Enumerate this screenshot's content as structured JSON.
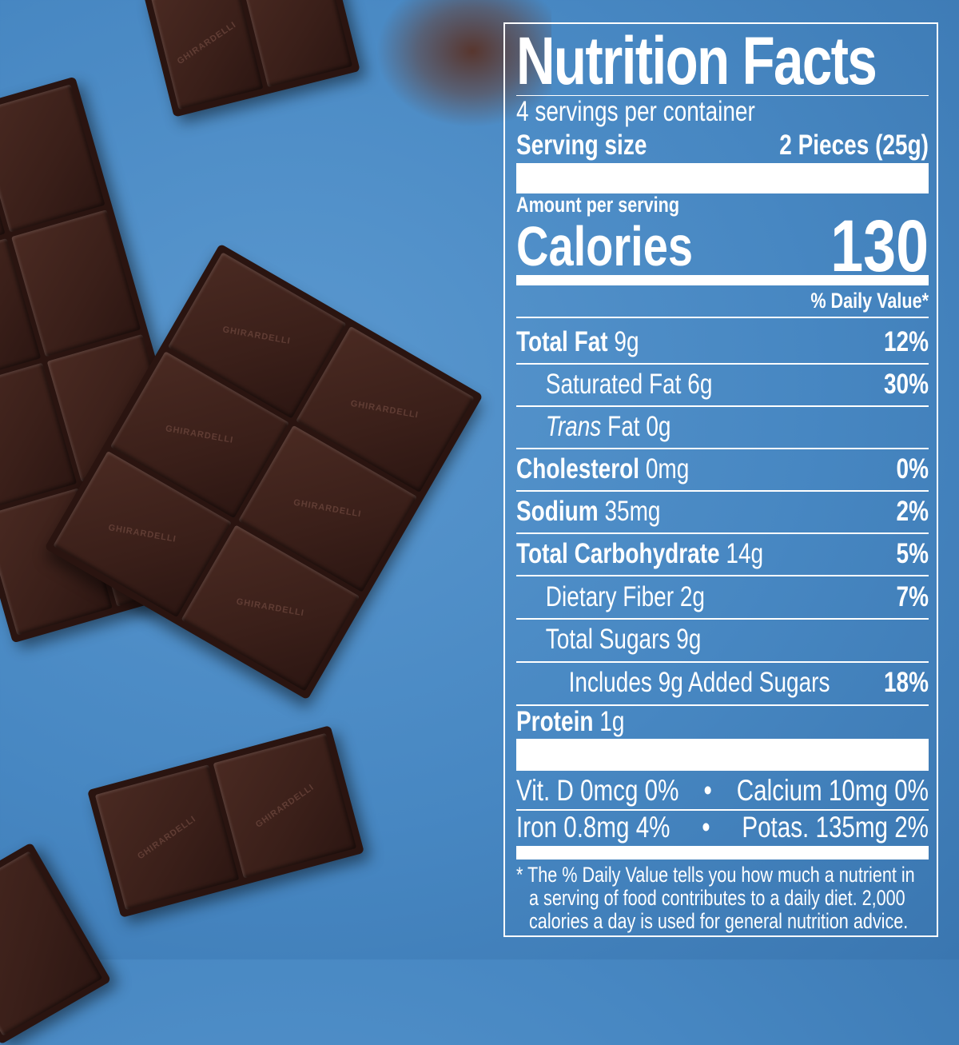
{
  "logo_text": "GHIRARDELLI",
  "colors": {
    "background": "#4787c2",
    "label": "#ffffff",
    "chocolate": "#3a1f19"
  },
  "label": {
    "title": "Nutrition Facts",
    "servings": "4 servings per container",
    "serving_size_label": "Serving size",
    "serving_size_value": "2 Pieces (25g)",
    "amount_per_serving": "Amount per serving",
    "calories_label": "Calories",
    "calories_value": "130",
    "daily_value_header": "% Daily Value*",
    "nutrients": [
      {
        "name": "Total Fat",
        "amount": "9g",
        "dv": "12%"
      },
      {
        "name": "Saturated Fat",
        "amount": "6g",
        "dv": "30%"
      },
      {
        "name": "Trans",
        "name2": "Fat",
        "amount": "0g",
        "dv": ""
      },
      {
        "name": "Cholesterol",
        "amount": "0mg",
        "dv": "0%"
      },
      {
        "name": "Sodium",
        "amount": "35mg",
        "dv": "2%"
      },
      {
        "name": "Total Carbohydrate",
        "amount": "14g",
        "dv": "5%"
      },
      {
        "name": "Dietary Fiber",
        "amount": "2g",
        "dv": "7%"
      },
      {
        "name": "Total Sugars",
        "amount": "9g",
        "dv": ""
      },
      {
        "name": "Includes 9g Added Sugars",
        "amount": "",
        "dv": "18%"
      },
      {
        "name": "Protein",
        "amount": "1g",
        "dv": ""
      }
    ],
    "vitamins": [
      {
        "left": "Vit. D 0mcg 0%",
        "right": "Calcium 10mg 0%"
      },
      {
        "left": "Iron 0.8mg 4%",
        "right": "Potas. 135mg 2%"
      }
    ],
    "bullet": "•",
    "footnote": [
      "* The % Daily Value tells you how much a nutrient in",
      "a serving of food contributes to a daily diet. 2,000",
      "calories a day is used for general nutrition advice."
    ]
  }
}
